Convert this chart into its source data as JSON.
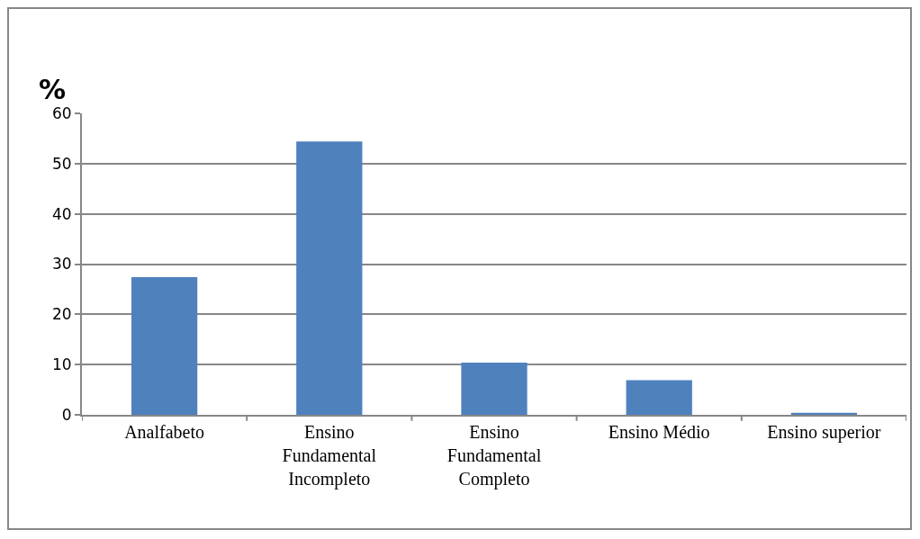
{
  "chart_data": {
    "type": "bar",
    "ylabel": "%",
    "categories": [
      "Analfabeto",
      "Ensino Fundamental Incompleto",
      "Ensino Fundamental Completo",
      "Ensino Médio",
      "Ensino superior"
    ],
    "values": [
      27.4,
      54.4,
      10.4,
      6.9,
      0.4
    ],
    "color": "#4f81bd",
    "ylim": [
      0,
      60
    ],
    "yticks": [
      0,
      10,
      20,
      30,
      40,
      50,
      60
    ],
    "grid": "y",
    "legend": false
  }
}
